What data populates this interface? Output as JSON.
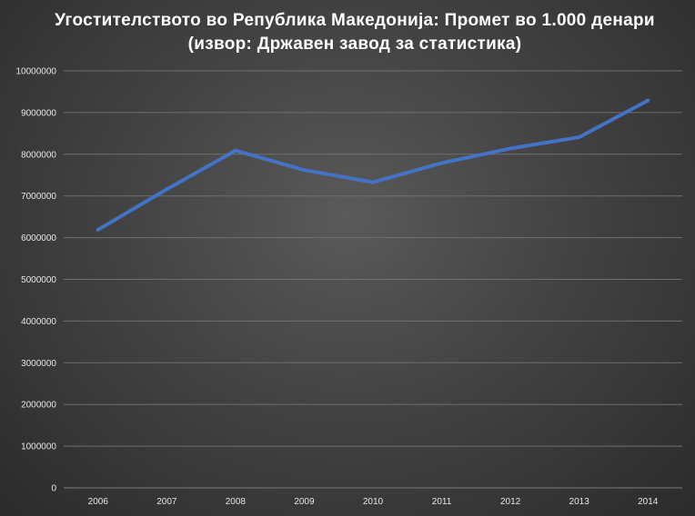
{
  "chart_data": {
    "type": "line",
    "title": "Угостителството во Република Македонија: Промет во 1.000 денари (извор: Државен завод за статистика)",
    "xlabel": "",
    "ylabel": "",
    "categories": [
      "2006",
      "2007",
      "2008",
      "2009",
      "2010",
      "2011",
      "2012",
      "2013",
      "2014"
    ],
    "series": [
      {
        "values": [
          6190000,
          7160000,
          8090000,
          7620000,
          7330000,
          7790000,
          8140000,
          8410000,
          9290000
        ]
      }
    ],
    "ylim": [
      0,
      10000000
    ],
    "yticks": [
      0,
      1000000,
      2000000,
      3000000,
      4000000,
      5000000,
      6000000,
      7000000,
      8000000,
      9000000,
      10000000
    ],
    "ytick_labels": [
      "0",
      "1000000",
      "2000000",
      "3000000",
      "4000000",
      "5000000",
      "6000000",
      "7000000",
      "8000000",
      "9000000",
      "10000000"
    ],
    "grid": true,
    "legend": "none",
    "line_color": "#4472c4",
    "grid_color": "#6f6f6f"
  }
}
